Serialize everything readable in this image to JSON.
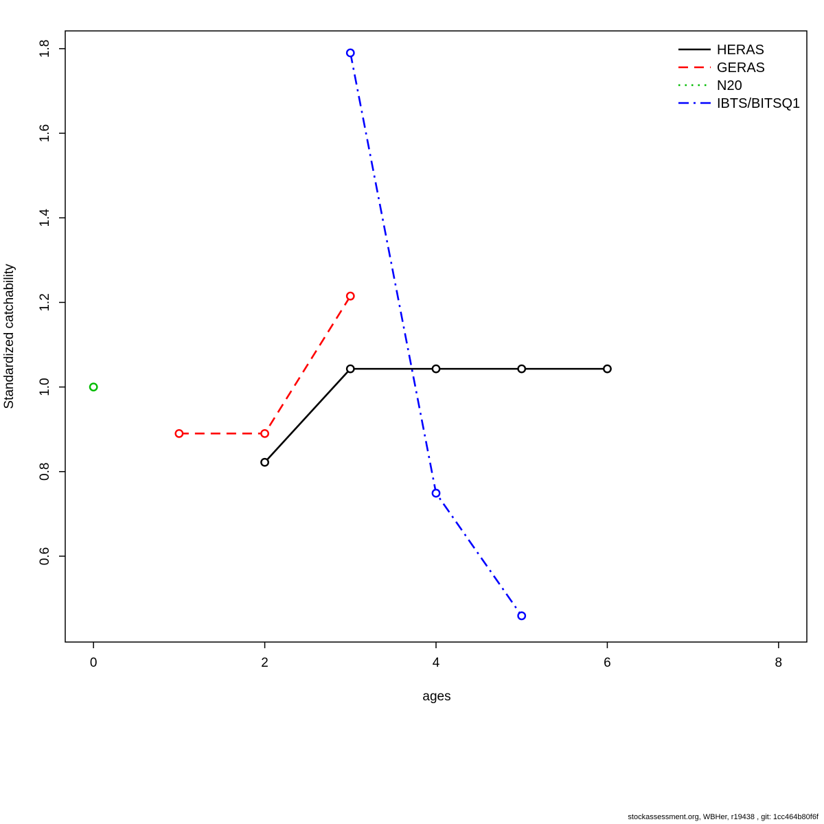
{
  "footer": {
    "text": "stockassessment.org, WBHer, r19438 , git: 1cc464b80f6f"
  },
  "chart_data": {
    "type": "line",
    "title": "",
    "xlabel": "ages",
    "ylabel": "Standardized catchability",
    "xlim": [
      -0.33,
      8.33
    ],
    "ylim": [
      0.397,
      1.842
    ],
    "x_ticks": [
      0,
      2,
      4,
      6,
      8
    ],
    "y_ticks": [
      0.6,
      0.8,
      1.0,
      1.2,
      1.4,
      1.6,
      1.8
    ],
    "grid": false,
    "legend_position": "top-right",
    "point_style": "open-circle",
    "series": [
      {
        "name": "HERAS",
        "color": "#000000",
        "dash": "solid",
        "points": [
          [
            2,
            0.822
          ],
          [
            3,
            1.043
          ],
          [
            4,
            1.043
          ],
          [
            5,
            1.043
          ],
          [
            6,
            1.043
          ]
        ]
      },
      {
        "name": "GERAS",
        "color": "#ff0000",
        "dash": "dashed",
        "points": [
          [
            1,
            0.89
          ],
          [
            2,
            0.89
          ],
          [
            3,
            1.215
          ]
        ]
      },
      {
        "name": "N20",
        "color": "#00bb00",
        "dash": "dotted",
        "points": [
          [
            0,
            1.0
          ]
        ]
      },
      {
        "name": "IBTS/BITSQ1",
        "color": "#0000ff",
        "dash": "dashdot",
        "points": [
          [
            3,
            1.79
          ],
          [
            4,
            0.749
          ],
          [
            5,
            0.459
          ]
        ]
      }
    ]
  }
}
